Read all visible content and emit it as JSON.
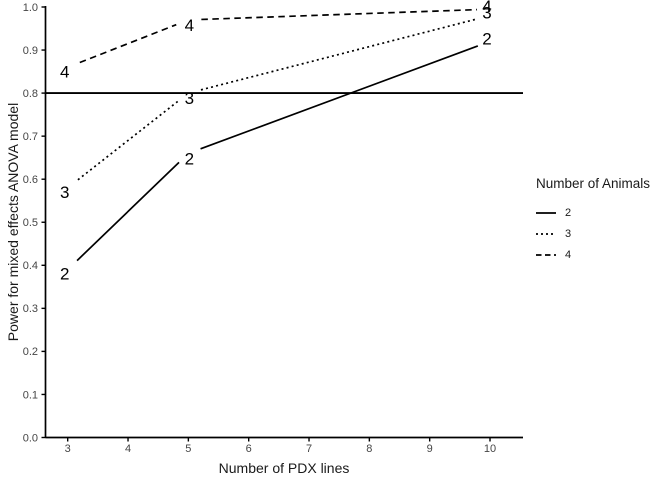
{
  "chart_data": {
    "type": "line",
    "title": "",
    "xlabel": "Number of PDX lines",
    "ylabel": "Power for mixed effects ANOVA model",
    "x": [
      3,
      5,
      10
    ],
    "series": [
      {
        "name": "2",
        "linetype": "solid",
        "values": [
          0.39,
          0.66,
          0.92
        ]
      },
      {
        "name": "3",
        "linetype": "dotted",
        "values": [
          0.58,
          0.8,
          0.98
        ]
      },
      {
        "name": "4",
        "linetype": "dashed",
        "values": [
          0.86,
          0.97,
          0.995
        ]
      }
    ],
    "reference_line_y": 0.8,
    "x_ticks": [
      3,
      4,
      5,
      6,
      7,
      8,
      9,
      10
    ],
    "y_ticks": [
      0.0,
      0.1,
      0.2,
      0.3,
      0.4,
      0.5,
      0.6,
      0.7,
      0.8,
      0.9,
      1.0
    ],
    "xlim": [
      3,
      10
    ],
    "ylim": [
      0.0,
      1.0
    ],
    "grid": false,
    "legend": {
      "position": "right",
      "title": "Number of Animals",
      "entries": [
        {
          "label": "2",
          "linetype": "solid"
        },
        {
          "label": "3",
          "linetype": "dotted"
        },
        {
          "label": "4",
          "linetype": "dashed"
        }
      ]
    },
    "colors": {
      "line": "#000000",
      "axis": "#000000",
      "tick_text": "#454545",
      "title_text": "#1a1a1a",
      "background": "#ffffff"
    }
  }
}
